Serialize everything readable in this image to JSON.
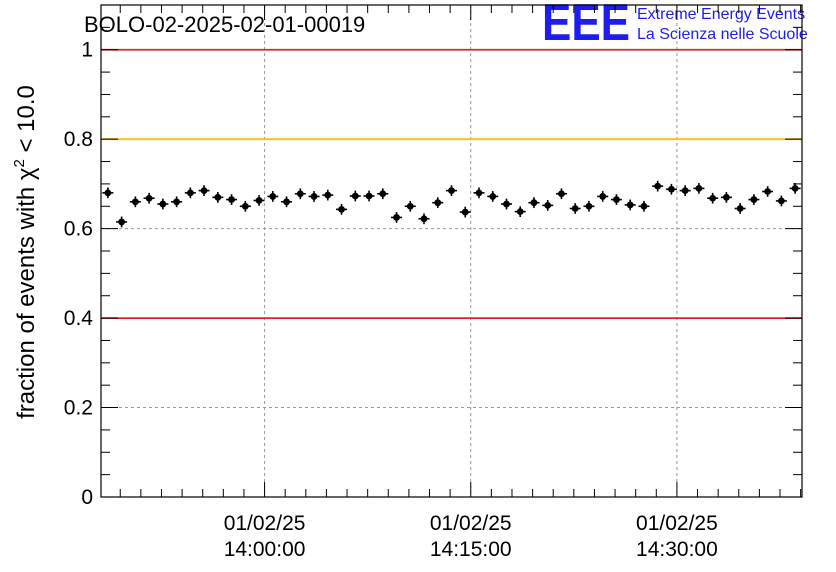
{
  "chart_data": {
    "type": "scatter",
    "title": "BOLO-02-2025-02-01-00019",
    "xlabel": "",
    "ylabel_prefix": "fraction of events with ",
    "ylabel_symbol": "χ",
    "ylabel_exp": "2",
    "ylabel_suffix": " < 10.0",
    "ylim": [
      0,
      1.1
    ],
    "yticks": [
      "0",
      "0.2",
      "0.4",
      "0.6",
      "0.8",
      "1"
    ],
    "ytick_values": [
      0,
      0.2,
      0.4,
      0.6,
      0.8,
      1.0
    ],
    "xlim_minutes": [
      -11.9,
      39.1
    ],
    "xticks": [
      {
        "minute": 0,
        "date": "01/02/25",
        "time": "14:00:00"
      },
      {
        "minute": 15,
        "date": "01/02/25",
        "time": "14:15:00"
      },
      {
        "minute": 30,
        "date": "01/02/25",
        "time": "14:30:00"
      }
    ],
    "reference_lines": [
      {
        "y": 1.0,
        "color": "#e8202a"
      },
      {
        "y": 0.8,
        "color": "#ffc000"
      },
      {
        "y": 0.4,
        "color": "#e8202a"
      }
    ],
    "grid": true,
    "marker_color": "#000000",
    "series": [
      {
        "name": "fraction",
        "x_start_minute": -11.4,
        "x_step_minute": 1.0,
        "x_error_minute": 0.4,
        "y_error": 0.012,
        "values": [
          0.68,
          0.615,
          0.66,
          0.668,
          0.655,
          0.66,
          0.68,
          0.685,
          0.67,
          0.665,
          0.65,
          0.663,
          0.672,
          0.66,
          0.678,
          0.672,
          0.675,
          0.643,
          0.673,
          0.673,
          0.678,
          0.625,
          0.65,
          0.622,
          0.658,
          0.685,
          0.637,
          0.68,
          0.672,
          0.655,
          0.638,
          0.658,
          0.652,
          0.678,
          0.645,
          0.65,
          0.672,
          0.665,
          0.653,
          0.65,
          0.695,
          0.688,
          0.685,
          0.69,
          0.668,
          0.67,
          0.645,
          0.665,
          0.683,
          0.662,
          0.69
        ]
      }
    ]
  },
  "logo": {
    "mark": "EEE",
    "line1": "Extreme Energy Events",
    "line2": "La Scienza nelle Scuole",
    "color": "#1d1df0"
  }
}
